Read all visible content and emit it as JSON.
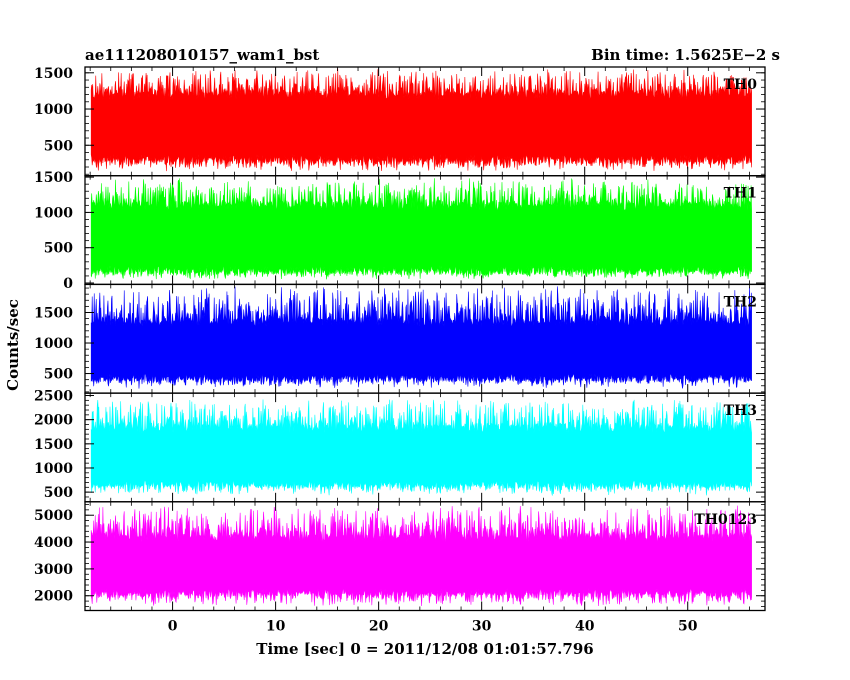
{
  "header": {
    "left_title": "ae111208010157_wam1_bst",
    "right_title": "Bin time: 1.5625E−2 s"
  },
  "chart_data": {
    "type": "line",
    "title": "ae111208010157_wam1_bst",
    "subtitle": "Bin time: 1.5625E−2 s",
    "xlabel": "Time [sec] 0 = 2011/12/08 01:01:57.796",
    "ylabel": "Counts/sec",
    "xlim": [
      -8.5,
      57.5
    ],
    "x_ticks": [
      0,
      10,
      20,
      30,
      40,
      50
    ],
    "bin_time_s": 0.015625,
    "data_x_range": [
      -7.9,
      56.2
    ],
    "grid": false,
    "panels": [
      {
        "name": "TH0",
        "color": "#ff0000",
        "ylim": [
          80,
          1580
        ],
        "yticks": [
          500,
          1000,
          1500
        ],
        "ytick_labels": [
          "500",
          "1000",
          "1500"
        ],
        "band": {
          "mean": 760,
          "typical_low": 250,
          "typical_high": 1250,
          "min": 130,
          "max": 1580
        }
      },
      {
        "name": "TH1",
        "color": "#00ff00",
        "ylim": [
          -20,
          1520
        ],
        "yticks": [
          0,
          500,
          1000,
          1500
        ],
        "ytick_labels": [
          "0",
          "500",
          "1000",
          "1500"
        ],
        "band": {
          "mean": 640,
          "typical_low": 120,
          "typical_high": 1150,
          "min": 40,
          "max": 1500
        }
      },
      {
        "name": "TH2",
        "color": "#0000ff",
        "ylim": [
          180,
          1960
        ],
        "yticks": [
          500,
          1000,
          1500
        ],
        "ytick_labels": [
          "500",
          "1000",
          "1500"
        ],
        "band": {
          "mean": 860,
          "typical_low": 380,
          "typical_high": 1400,
          "min": 250,
          "max": 1950
        }
      },
      {
        "name": "TH3",
        "color": "#00ffff",
        "ylim": [
          300,
          2550
        ],
        "yticks": [
          500,
          1000,
          1500,
          2000,
          2500
        ],
        "ytick_labels": [
          "500",
          "1000",
          "1500",
          "2000",
          "2500"
        ],
        "band": {
          "mean": 1180,
          "typical_low": 600,
          "typical_high": 1900,
          "min": 420,
          "max": 2450
        }
      },
      {
        "name": "TH0123",
        "color": "#ff00ff",
        "ylim": [
          1450,
          5500
        ],
        "yticks": [
          2000,
          3000,
          4000,
          5000
        ],
        "ytick_labels": [
          "2000",
          "3000",
          "4000",
          "5000"
        ],
        "band": {
          "mean": 3100,
          "typical_low": 2000,
          "typical_high": 4300,
          "min": 1600,
          "max": 5400
        }
      }
    ]
  }
}
